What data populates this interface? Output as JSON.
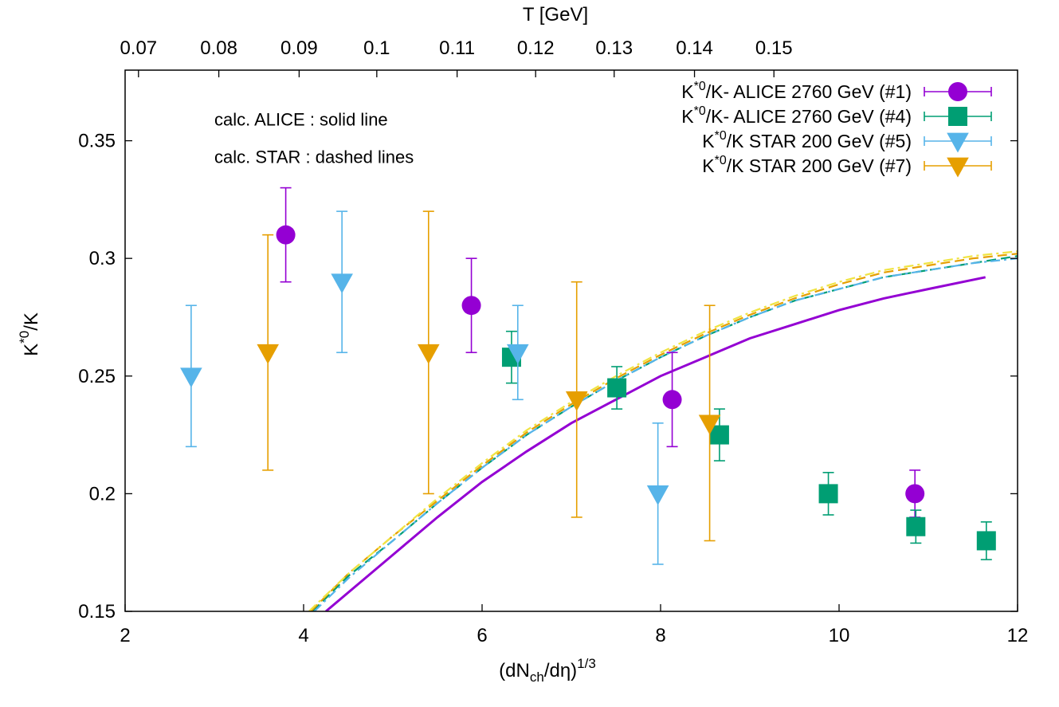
{
  "chart_data": {
    "type": "scatter",
    "title": "",
    "xlabel": "(dN_ch/dη)^1/3",
    "xlabel_parts": {
      "base": "(dN",
      "sub": "ch",
      "mid": "/dη)",
      "sup": "1/3"
    },
    "ylabel": "K*0/K",
    "ylabel_parts": {
      "base": "K",
      "sup": "*0",
      "rest": "/K"
    },
    "top_xlabel": "T [GeV]",
    "xlim": [
      2,
      12
    ],
    "ylim": [
      0.15,
      0.38
    ],
    "x_ticks": [
      "2",
      "4",
      "6",
      "8",
      "10",
      "12"
    ],
    "y_ticks": [
      "0.15",
      "0.2",
      "0.25",
      "0.3",
      "0.35"
    ],
    "top_ticks": [
      {
        "label": "0.07",
        "x": 2.15
      },
      {
        "label": "0.08",
        "x": 3.05
      },
      {
        "label": "0.09",
        "x": 3.95
      },
      {
        "label": "0.1",
        "x": 4.82
      },
      {
        "label": "0.11",
        "x": 5.72
      },
      {
        "label": "0.12",
        "x": 6.6
      },
      {
        "label": "0.13",
        "x": 7.48
      },
      {
        "label": "0.14",
        "x": 8.38
      },
      {
        "label": "0.15",
        "x": 9.27
      }
    ],
    "grid": false,
    "legend_position": "top-right",
    "annotations": [
      {
        "text": "calc. ALICE : solid line",
        "x": 3.0,
        "y": 0.3565
      },
      {
        "text": "calc. STAR : dashed lines",
        "x": 3.0,
        "y": 0.3405
      }
    ],
    "series": [
      {
        "name": "K*0/K- ALICE 2760 GeV (#1)",
        "label": {
          "pre": "K",
          "sup": "*0",
          "post": "/K- ALICE 2760 GeV (#1)"
        },
        "marker": "circle",
        "color": "#9400d3",
        "points": [
          {
            "x": 3.8,
            "y": 0.31,
            "ylo": 0.29,
            "yhi": 0.33
          },
          {
            "x": 5.88,
            "y": 0.28,
            "ylo": 0.26,
            "yhi": 0.3
          },
          {
            "x": 8.13,
            "y": 0.24,
            "ylo": 0.22,
            "yhi": 0.26
          },
          {
            "x": 10.85,
            "y": 0.2,
            "ylo": 0.19,
            "yhi": 0.21
          }
        ]
      },
      {
        "name": "K*0/K- ALICE 2760 GeV (#4)",
        "label": {
          "pre": "K",
          "sup": "*0",
          "post": "/K- ALICE 2760 GeV (#4)"
        },
        "marker": "square",
        "color": "#009e73",
        "points": [
          {
            "x": 6.33,
            "y": 0.258,
            "ylo": 0.247,
            "yhi": 0.269
          },
          {
            "x": 7.51,
            "y": 0.245,
            "ylo": 0.236,
            "yhi": 0.254
          },
          {
            "x": 8.66,
            "y": 0.225,
            "ylo": 0.214,
            "yhi": 0.236
          },
          {
            "x": 9.88,
            "y": 0.2,
            "ylo": 0.191,
            "yhi": 0.209
          },
          {
            "x": 10.86,
            "y": 0.186,
            "ylo": 0.179,
            "yhi": 0.193
          },
          {
            "x": 11.65,
            "y": 0.18,
            "ylo": 0.172,
            "yhi": 0.188
          }
        ]
      },
      {
        "name": "K*0/K STAR 200 GeV (#5)",
        "label": {
          "pre": "K",
          "sup": "*0",
          "post": "/K STAR 200 GeV (#5)"
        },
        "marker": "triangle-down",
        "color": "#56b4e9",
        "points": [
          {
            "x": 2.74,
            "y": 0.25,
            "ylo": 0.22,
            "yhi": 0.28
          },
          {
            "x": 4.43,
            "y": 0.29,
            "ylo": 0.26,
            "yhi": 0.32
          },
          {
            "x": 6.4,
            "y": 0.26,
            "ylo": 0.24,
            "yhi": 0.28
          },
          {
            "x": 7.97,
            "y": 0.2,
            "ylo": 0.17,
            "yhi": 0.23
          }
        ]
      },
      {
        "name": "K*0/K STAR 200 GeV (#7)",
        "label": {
          "pre": "K",
          "sup": "*0",
          "post": "/K STAR 200 GeV (#7)"
        },
        "marker": "triangle-down",
        "color": "#e69f00",
        "points": [
          {
            "x": 3.6,
            "y": 0.26,
            "ylo": 0.21,
            "yhi": 0.31
          },
          {
            "x": 5.4,
            "y": 0.26,
            "ylo": 0.2,
            "yhi": 0.32
          },
          {
            "x": 7.06,
            "y": 0.24,
            "ylo": 0.19,
            "yhi": 0.29
          },
          {
            "x": 8.55,
            "y": 0.23,
            "ylo": 0.18,
            "yhi": 0.28
          }
        ]
      }
    ],
    "curves": [
      {
        "style": "solid",
        "color": "#9400d3",
        "x": [
          4.25,
          5.0,
          5.5,
          6.0,
          6.5,
          7.0,
          7.5,
          8.0,
          8.5,
          9.0,
          9.5,
          10.0,
          10.5,
          11.0,
          11.64
        ],
        "y": [
          0.15,
          0.174,
          0.19,
          0.205,
          0.218,
          0.23,
          0.24,
          0.25,
          0.258,
          0.266,
          0.272,
          0.278,
          0.283,
          0.287,
          0.292
        ]
      },
      {
        "style": "dashed",
        "color": "#009e73",
        "x": [
          4.1,
          4.5,
          5.0,
          5.5,
          6.0,
          6.5,
          7.0,
          7.5,
          8.0,
          8.5,
          9.0,
          9.5,
          10.0,
          10.5,
          11.0,
          11.5,
          12.0
        ],
        "y": [
          0.15,
          0.165,
          0.18,
          0.196,
          0.211,
          0.225,
          0.237,
          0.248,
          0.258,
          0.267,
          0.275,
          0.282,
          0.287,
          0.292,
          0.295,
          0.298,
          0.301
        ]
      },
      {
        "style": "dash-dot",
        "color": "#56b4e9",
        "x": [
          4.12,
          4.5,
          5.0,
          5.5,
          6.0,
          6.5,
          7.0,
          7.5,
          8.0,
          8.5,
          9.0,
          9.5,
          10.0,
          10.5,
          11.0,
          11.5,
          12.0
        ],
        "y": [
          0.15,
          0.164,
          0.18,
          0.196,
          0.211,
          0.225,
          0.237,
          0.248,
          0.258,
          0.267,
          0.275,
          0.282,
          0.287,
          0.292,
          0.295,
          0.298,
          0.3
        ]
      },
      {
        "style": "dashed",
        "color": "#e69f00",
        "x": [
          4.08,
          4.5,
          5.0,
          5.5,
          6.0,
          6.5,
          7.0,
          7.5,
          8.0,
          8.5,
          9.0,
          9.5,
          10.0,
          10.5,
          11.0,
          11.5,
          12.0
        ],
        "y": [
          0.15,
          0.166,
          0.182,
          0.197,
          0.212,
          0.226,
          0.238,
          0.249,
          0.259,
          0.268,
          0.276,
          0.283,
          0.289,
          0.294,
          0.297,
          0.3,
          0.302
        ]
      },
      {
        "style": "dash-dot",
        "color": "#f0e442",
        "x": [
          4.06,
          4.5,
          5.0,
          5.5,
          6.0,
          6.5,
          7.0,
          7.5,
          8.0,
          8.5,
          9.0,
          9.5,
          10.0,
          10.5,
          11.0,
          11.5,
          12.0
        ],
        "y": [
          0.15,
          0.166,
          0.182,
          0.198,
          0.213,
          0.227,
          0.239,
          0.25,
          0.26,
          0.269,
          0.277,
          0.284,
          0.29,
          0.295,
          0.298,
          0.301,
          0.303
        ]
      }
    ]
  }
}
